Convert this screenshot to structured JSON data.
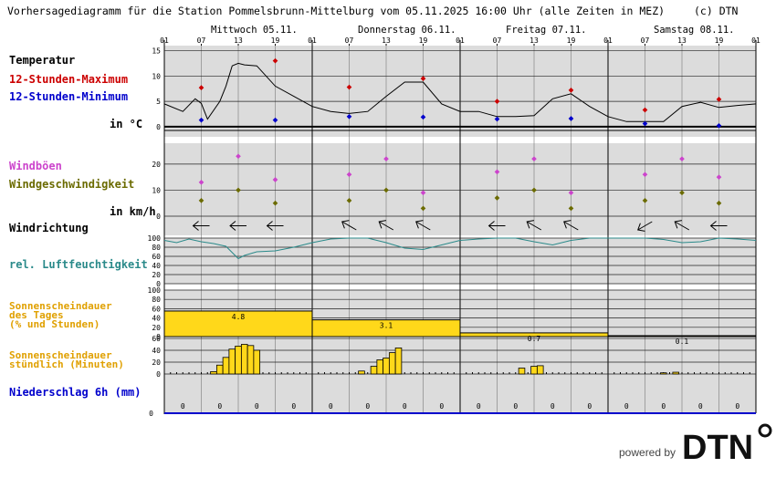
{
  "title": "Vorhersagediagramm für die Station Pommelsbrunn-Mittelburg vom 05.11.2025 16:00 Uhr (alle Zeiten in MEZ)",
  "copyright": "(c) DTN",
  "days": [
    "Mittwoch 05.11.",
    "Donnerstag 06.11.",
    "Freitag 07.11.",
    "Samstag 08.11."
  ],
  "hour_labels": [
    "01",
    "07",
    "13",
    "19",
    "01",
    "07",
    "13",
    "19",
    "01",
    "07",
    "13",
    "19",
    "01",
    "07",
    "13",
    "19",
    "01"
  ],
  "labels": {
    "temp": "Temperatur",
    "tmax": "12-Stunden-Maximum",
    "tmin": "12-Stunden-Minimum",
    "temp_unit": "in °C",
    "gust": "Windböen",
    "wind": "Windgeschwindigkeit",
    "wind_unit": "in km/h",
    "winddir": "Windrichtung",
    "rh": "rel. Luftfeuchtigkeit",
    "sun_day_1": "Sonnenscheindauer",
    "sun_day_2": "des Tages",
    "sun_day_3": "(% und Stunden)",
    "sun_hour_1": "Sonnenscheindauer",
    "sun_hour_2": "stündlich (Minuten)",
    "precip": "Niederschlag 6h (mm)"
  },
  "footer": {
    "powered_by": "powered by",
    "brand": "DTN"
  },
  "colors": {
    "panel": "#dcdcdc",
    "tmax": "#cc0000",
    "tmin": "#0000cc",
    "gust": "#cc44cc",
    "wind": "#6b6b00",
    "rh": "#2a8a8a",
    "sun_label": "#e0a000",
    "sun_fill": "#ffd81a",
    "precip": "#0000cc"
  },
  "chart_data": [
    {
      "type": "line",
      "name": "temperature",
      "ylim": [
        -2,
        16
      ],
      "yticks": [
        0,
        5,
        10,
        15
      ],
      "x_hours": [
        1,
        4,
        6,
        7,
        8,
        10,
        11,
        12,
        13,
        14,
        16,
        19,
        22,
        25,
        28,
        31,
        34,
        37,
        40,
        43,
        46,
        49,
        52,
        55,
        58,
        61,
        64,
        67,
        70,
        73,
        76,
        79,
        82,
        85,
        88,
        91,
        94,
        97
      ],
      "y": [
        4.5,
        3,
        5.5,
        4.6,
        1.5,
        5,
        8,
        12,
        12.5,
        12.2,
        12,
        8,
        6,
        4,
        3,
        2.6,
        3,
        6,
        8.8,
        8.8,
        4.5,
        3,
        3,
        2,
        2,
        2.2,
        5.5,
        6.5,
        4,
        2,
        1,
        1,
        1,
        4,
        4.8,
        3.8,
        4.2,
        4.5
      ],
      "tmax": [
        {
          "x": 7,
          "y": 7.7
        },
        {
          "x": 19,
          "y": 13
        },
        {
          "x": 31,
          "y": 7.8
        },
        {
          "x": 43,
          "y": 9.5
        },
        {
          "x": 55,
          "y": 5
        },
        {
          "x": 67,
          "y": 7.2
        },
        {
          "x": 79,
          "y": 3.3
        },
        {
          "x": 91,
          "y": 5.4
        }
      ],
      "tmin": [
        {
          "x": 7,
          "y": 1.3
        },
        {
          "x": 19,
          "y": 1.3
        },
        {
          "x": 31,
          "y": 2
        },
        {
          "x": 43,
          "y": 1.9
        },
        {
          "x": 55,
          "y": 1.5
        },
        {
          "x": 67,
          "y": 1.6
        },
        {
          "x": 79,
          "y": 0.6
        },
        {
          "x": 91,
          "y": 0.2
        }
      ]
    },
    {
      "type": "scatter",
      "name": "wind",
      "ylim": [
        0,
        28
      ],
      "yticks": [
        0,
        10,
        20
      ],
      "gusts": [
        {
          "x": 7,
          "y": 13
        },
        {
          "x": 13,
          "y": 23
        },
        {
          "x": 19,
          "y": 14
        },
        {
          "x": 31,
          "y": 16
        },
        {
          "x": 37,
          "y": 22
        },
        {
          "x": 43,
          "y": 9
        },
        {
          "x": 55,
          "y": 17
        },
        {
          "x": 61,
          "y": 22
        },
        {
          "x": 67,
          "y": 9
        },
        {
          "x": 79,
          "y": 16
        },
        {
          "x": 85,
          "y": 22
        },
        {
          "x": 91,
          "y": 15
        }
      ],
      "speed": [
        {
          "x": 7,
          "y": 6
        },
        {
          "x": 13,
          "y": 10
        },
        {
          "x": 19,
          "y": 5
        },
        {
          "x": 31,
          "y": 6
        },
        {
          "x": 37,
          "y": 10
        },
        {
          "x": 43,
          "y": 3
        },
        {
          "x": 55,
          "y": 7
        },
        {
          "x": 61,
          "y": 10
        },
        {
          "x": 67,
          "y": 3
        },
        {
          "x": 79,
          "y": 6
        },
        {
          "x": 85,
          "y": 9
        },
        {
          "x": 91,
          "y": 5
        }
      ]
    },
    {
      "type": "scatter",
      "name": "wind_direction",
      "points": [
        {
          "x": 7,
          "dir": "E"
        },
        {
          "x": 13,
          "dir": "E"
        },
        {
          "x": 19,
          "dir": "E"
        },
        {
          "x": 31,
          "dir": "NE"
        },
        {
          "x": 37,
          "dir": "NE"
        },
        {
          "x": 43,
          "dir": "NE"
        },
        {
          "x": 55,
          "dir": "E"
        },
        {
          "x": 61,
          "dir": "NE"
        },
        {
          "x": 67,
          "dir": "NE"
        },
        {
          "x": 79,
          "dir": "SE"
        },
        {
          "x": 85,
          "dir": "NE"
        },
        {
          "x": 91,
          "dir": "W"
        }
      ]
    },
    {
      "type": "line",
      "name": "humidity",
      "ylim": [
        0,
        100
      ],
      "yticks": [
        0,
        20,
        40,
        60,
        80,
        100
      ],
      "x_hours": [
        1,
        3,
        5,
        7,
        9,
        11,
        13,
        14,
        16,
        19,
        22,
        25,
        28,
        31,
        34,
        37,
        40,
        43,
        46,
        49,
        52,
        55,
        58,
        61,
        64,
        67,
        70,
        73,
        76,
        79,
        82,
        85,
        88,
        91,
        94,
        97
      ],
      "y": [
        95,
        90,
        98,
        92,
        88,
        82,
        55,
        62,
        70,
        72,
        80,
        90,
        98,
        100,
        100,
        90,
        78,
        75,
        85,
        95,
        98,
        100,
        100,
        92,
        85,
        95,
        100,
        100,
        100,
        100,
        97,
        90,
        92,
        100,
        98,
        95
      ]
    },
    {
      "type": "bar",
      "name": "sunshine_daily",
      "ylim": [
        0,
        100
      ],
      "yticks": [
        0,
        20,
        40,
        60,
        80,
        100
      ],
      "categories": [
        "05.11.",
        "06.11.",
        "07.11.",
        "08.11."
      ],
      "percent": [
        55,
        36,
        8,
        2
      ],
      "hours": [
        "4.8",
        "3.1",
        "0.7",
        "0.1"
      ]
    },
    {
      "type": "bar",
      "name": "sunshine_hourly",
      "ylim": [
        0,
        60
      ],
      "yticks": [
        0,
        20,
        40,
        60
      ],
      "hours": [
        9,
        10,
        11,
        12,
        13,
        14,
        15,
        16,
        33,
        35,
        36,
        37,
        38,
        39,
        59,
        61,
        62,
        82,
        84
      ],
      "minutes": [
        4,
        15,
        28,
        42,
        47,
        50,
        48,
        40,
        5,
        13,
        24,
        27,
        36,
        44,
        10,
        13,
        14,
        2,
        3
      ]
    },
    {
      "type": "table",
      "name": "precipitation",
      "x_hours": [
        4,
        10,
        16,
        22,
        28,
        34,
        40,
        46,
        52,
        58,
        64,
        70,
        76,
        82,
        88,
        94
      ],
      "values": [
        "0",
        "0",
        "0",
        "0",
        "0",
        "0",
        "0",
        "0",
        "0",
        "0",
        "0",
        "0",
        "0",
        "0",
        "0",
        "0"
      ]
    }
  ]
}
